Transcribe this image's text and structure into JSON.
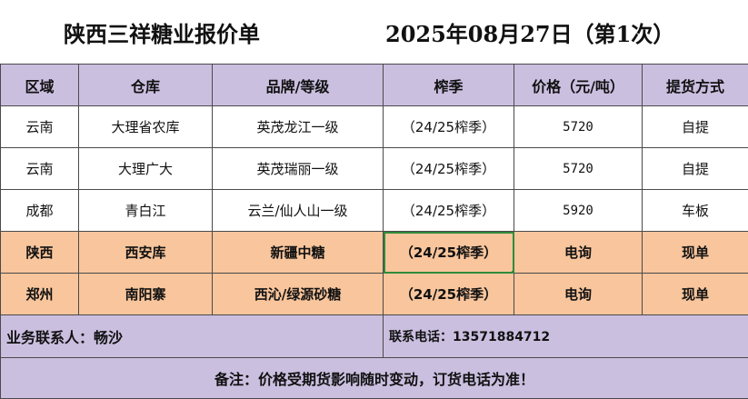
{
  "header": {
    "title": "陕西三祥糖业报价单",
    "date": "2025年08月27日（第1次）"
  },
  "columns": [
    "区域",
    "仓库",
    "品牌/等级",
    "榨季",
    "价格（元/吨）",
    "提货方式"
  ],
  "rows": [
    {
      "region": "云南",
      "warehouse": "大理省农库",
      "brand": "英茂龙江一级",
      "season": "（24/25榨季）",
      "price": "5720",
      "delivery": "自提"
    },
    {
      "region": "云南",
      "warehouse": "大理广大",
      "brand": "英茂瑞丽一级",
      "season": "（24/25榨季）",
      "price": "5720",
      "delivery": "自提"
    },
    {
      "region": "成都",
      "warehouse": "青白江",
      "brand": "云兰/仙人山一级",
      "season": "（24/25榨季）",
      "price": "5920",
      "delivery": "车板"
    },
    {
      "region": "陕西",
      "warehouse": "西安库",
      "brand": "新疆中糖",
      "season": "（24/25榨季）",
      "price": "电询",
      "delivery": "现单"
    },
    {
      "region": "郑州",
      "warehouse": "南阳寨",
      "brand": "西沁/绿源砂糖",
      "season": "（24/25榨季）",
      "price": "电询",
      "delivery": "现单"
    }
  ],
  "contact": {
    "person": "业务联系人：畅沙",
    "phone": "联系电话：13571884712"
  },
  "note": "备注：价格受期货影响随时变动，订货电话为准！",
  "colors": {
    "header_bg": "#cbbfe0",
    "highlight_bg": "#f8c59c",
    "selection": "#2e8b3d"
  }
}
